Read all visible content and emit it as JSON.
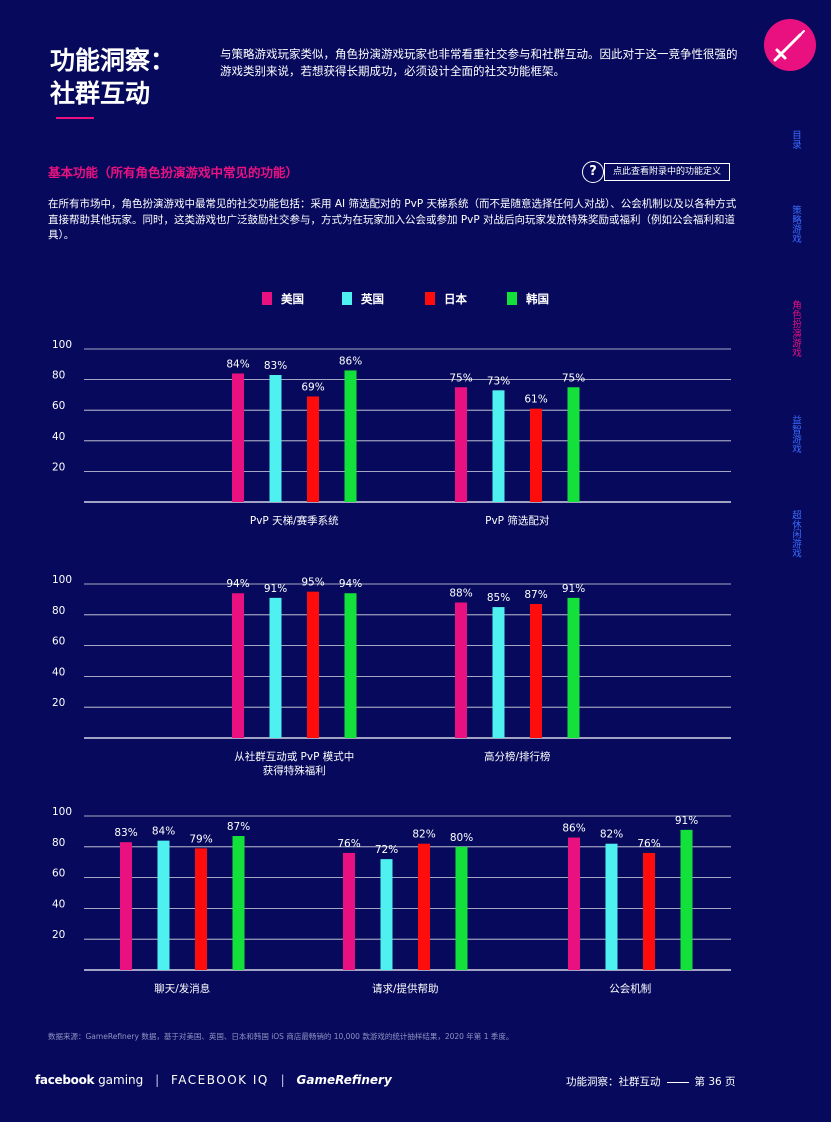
{
  "page": {
    "title_line1": "功能洞察：",
    "title_line2": "社群互动",
    "intro": "与策略游戏玩家类似，角色扮演游戏玩家也非常看重社交参与和社群互动。因此对于这一竞争性很强的游戏类别来说，若想获得长期成功，必须设计全面的社交功能框架。",
    "section_heading": "基本功能（所有角色扮演游戏中常见的功能）",
    "appendix_link": "点此查看附录中的功能定义",
    "appendix_icon": "?",
    "description": "在所有市场中，角色扮演游戏中最常见的社交功能包括：采用 AI 筛选配对的 PvP 天梯系统（而不是随意选择任何人对战）、公会机制以及以各种方式直接帮助其他玩家。同时，这类游戏也广泛鼓励社交参与，方式为在玩家加入公会或参加 PvP 对战后向玩家发放特殊奖励或福利（例如公会福利和道具）。",
    "source_note": "数据来源：GameRefinery 数据，基于对美国、英国、日本和韩国 iOS 商店最畅销的 10,000 款游戏的统计抽样结果，2020 年第 1 季度。"
  },
  "side_nav": [
    {
      "label": "目录",
      "active": false
    },
    {
      "label": "策略游戏",
      "active": false
    },
    {
      "label": "角色扮演游戏",
      "active": true
    },
    {
      "label": "益智游戏",
      "active": false
    },
    {
      "label": "超休闲游戏",
      "active": false
    }
  ],
  "footer": {
    "logo_facebook": "facebook",
    "logo_gaming": "gaming",
    "logo_iq": "FACEBOOK IQ",
    "logo_gamerefinery": "GameRefinery",
    "page_label": "功能洞察：社群互动",
    "page_number": "第 36 页"
  },
  "legend": [
    {
      "name": "美国",
      "color": "#e8117f"
    },
    {
      "name": "英国",
      "color": "#4ff0f0"
    },
    {
      "name": "日本",
      "color": "#ff0d0d"
    },
    {
      "name": "韩国",
      "color": "#14e03c"
    }
  ],
  "chart_data": [
    {
      "type": "bar",
      "ylim": [
        0,
        100
      ],
      "yticks": [
        20,
        40,
        60,
        80,
        100
      ],
      "grid": true,
      "categories": [
        "PvP 天梯/赛季系统",
        "PvP 筛选配对"
      ],
      "series": [
        {
          "name": "美国",
          "values": [
            84,
            75
          ]
        },
        {
          "name": "英国",
          "values": [
            83,
            73
          ]
        },
        {
          "name": "日本",
          "values": [
            69,
            61
          ]
        },
        {
          "name": "韩国",
          "values": [
            86,
            75
          ]
        }
      ]
    },
    {
      "type": "bar",
      "ylim": [
        0,
        100
      ],
      "yticks": [
        20,
        40,
        60,
        80,
        100
      ],
      "grid": true,
      "categories": [
        "从社群互动或 PvP 模式中\n获得特殊福利",
        "高分榜/排行榜"
      ],
      "series": [
        {
          "name": "美国",
          "values": [
            94,
            88
          ]
        },
        {
          "name": "英国",
          "values": [
            91,
            85
          ]
        },
        {
          "name": "日本",
          "values": [
            95,
            87
          ]
        },
        {
          "name": "韩国",
          "values": [
            94,
            91
          ]
        }
      ]
    },
    {
      "type": "bar",
      "ylim": [
        0,
        100
      ],
      "yticks": [
        20,
        40,
        60,
        80,
        100
      ],
      "grid": true,
      "categories": [
        "聊天/发消息",
        "请求/提供帮助",
        "公会机制"
      ],
      "series": [
        {
          "name": "美国",
          "values": [
            83,
            76,
            86
          ]
        },
        {
          "name": "英国",
          "values": [
            84,
            72,
            82
          ]
        },
        {
          "name": "日本",
          "values": [
            79,
            82,
            76
          ]
        },
        {
          "name": "韩国",
          "values": [
            87,
            80,
            91
          ]
        }
      ]
    }
  ]
}
